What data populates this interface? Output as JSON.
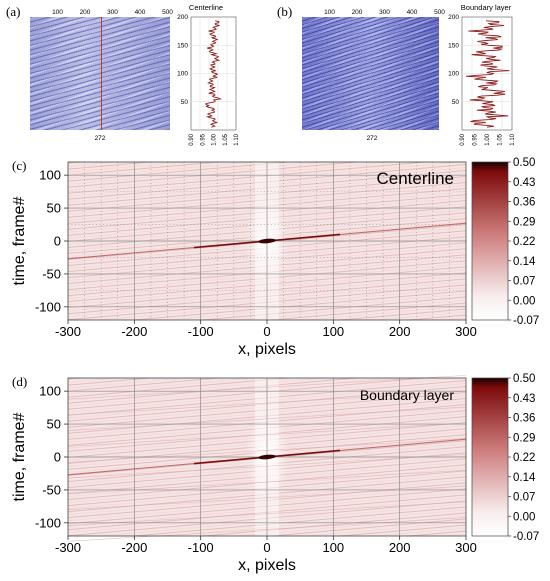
{
  "panels": {
    "a": {
      "label": "(a)",
      "image_ticks": [
        "100",
        "200",
        "300",
        "400",
        "500"
      ],
      "image_marker": "272",
      "profile_title": "Centerline",
      "profile_yticks": [
        "200",
        "150",
        "100",
        "50"
      ],
      "profile_xticks": [
        "0.90",
        "0.95",
        "1.00",
        "1.05",
        "1.10"
      ]
    },
    "b": {
      "label": "(b)",
      "image_ticks": [
        "100",
        "200",
        "300",
        "400",
        "500"
      ],
      "image_marker": "272",
      "profile_title": "Boundary layer",
      "profile_yticks": [
        "200",
        "150",
        "100",
        "50"
      ],
      "profile_xticks": [
        "0.90",
        "0.95",
        "1.00",
        "1.05",
        "1.10"
      ]
    },
    "c": {
      "label": "(c)"
    },
    "d": {
      "label": "(d)"
    }
  },
  "chart_data": [
    {
      "type": "line",
      "title": "Centerline",
      "xlim": [
        0.9,
        1.1
      ],
      "ylim": [
        0,
        200
      ],
      "y": [
        5,
        15,
        25,
        35,
        45,
        55,
        65,
        75,
        85,
        95,
        105,
        115,
        125,
        135,
        145,
        155,
        165,
        175,
        185,
        195
      ],
      "x": [
        0.99,
        1.01,
        0.98,
        1.0,
        0.97,
        1.02,
        0.99,
        1.0,
        0.98,
        1.01,
        1.0,
        0.99,
        1.02,
        1.0,
        0.98,
        1.01,
        1.0,
        0.99,
        1.02,
        1.01
      ],
      "color": "#8b1a1a"
    },
    {
      "type": "line",
      "title": "Boundary layer",
      "xlim": [
        0.9,
        1.1
      ],
      "ylim": [
        0,
        200
      ],
      "y": [
        5,
        15,
        25,
        35,
        45,
        55,
        65,
        75,
        85,
        95,
        105,
        115,
        125,
        135,
        145,
        155,
        165,
        175,
        185,
        195
      ],
      "x": [
        1.0,
        0.96,
        1.05,
        0.98,
        1.03,
        0.95,
        1.06,
        0.99,
        1.02,
        0.95,
        1.06,
        0.98,
        1.04,
        0.96,
        1.05,
        0.99,
        1.03,
        0.96,
        1.05,
        1.0
      ],
      "color": "#8b1a1a"
    },
    {
      "type": "heatmap",
      "title": "Centerline",
      "xlabel": "x, pixels",
      "ylabel": "time, frame#",
      "xlim": [
        -300,
        300
      ],
      "ylim": [
        -120,
        120
      ],
      "xticks": [
        -300,
        -200,
        -100,
        0,
        100,
        200,
        300
      ],
      "yticks": [
        -100,
        -50,
        0,
        50,
        100
      ],
      "grid": true,
      "colorbar": [
        0.5,
        0.43,
        0.36,
        0.29,
        0.22,
        0.14,
        0.07,
        0.0,
        -0.07
      ],
      "colorbar_labels": [
        "0.50",
        "0.43",
        "0.36",
        "0.29",
        "0.22",
        "0.14",
        "0.07",
        "0.00",
        "-0.07"
      ],
      "peak": {
        "x": 0,
        "y": 0,
        "value": 0.5
      },
      "ridge": {
        "x": [
          -300,
          300
        ],
        "y": [
          -27,
          27
        ]
      }
    },
    {
      "type": "heatmap",
      "title": "Boundary layer",
      "xlabel": "x, pixels",
      "ylabel": "time, frame#",
      "xlim": [
        -300,
        300
      ],
      "ylim": [
        -120,
        120
      ],
      "xticks": [
        -300,
        -200,
        -100,
        0,
        100,
        200,
        300
      ],
      "yticks": [
        -100,
        -50,
        0,
        50,
        100
      ],
      "grid": true,
      "colorbar": [
        0.5,
        0.43,
        0.36,
        0.29,
        0.22,
        0.14,
        0.07,
        0.0,
        -0.07
      ],
      "colorbar_labels": [
        "0.50",
        "0.43",
        "0.36",
        "0.29",
        "0.22",
        "0.14",
        "0.07",
        "0.00",
        "-0.07"
      ],
      "peak": {
        "x": 0,
        "y": 0,
        "value": 0.5
      },
      "ridge": {
        "x": [
          -300,
          300
        ],
        "y": [
          -27,
          27
        ]
      }
    }
  ]
}
